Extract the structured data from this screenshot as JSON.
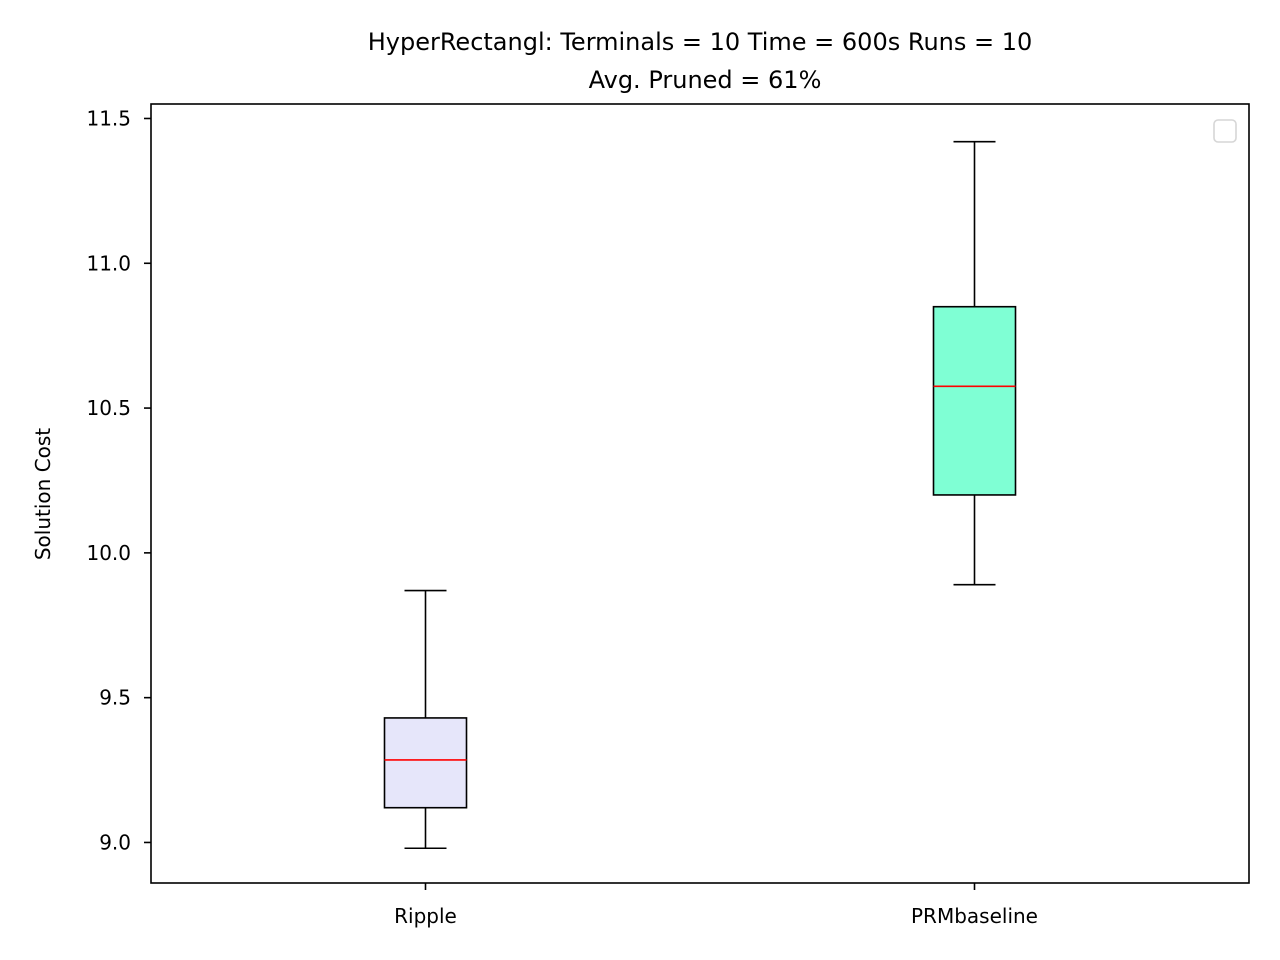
{
  "chart_data": {
    "type": "box",
    "title_line1": "HyperRectangl:  Terminals = 10  Time = 600s  Runs = 10",
    "title_line2": "Avg. Pruned = 61%",
    "xlabel": "",
    "ylabel": "Solution Cost",
    "ylim": [
      8.86,
      11.55
    ],
    "yticks": [
      9.0,
      9.5,
      10.0,
      10.5,
      11.0,
      11.5
    ],
    "ytick_labels": [
      "9.0",
      "9.5",
      "10.0",
      "10.5",
      "11.0",
      "11.5"
    ],
    "categories": [
      "Ripple",
      "PRMbaseline"
    ],
    "boxes": [
      {
        "category": "Ripple",
        "whisker_low": 8.98,
        "q1": 9.12,
        "median": 9.285,
        "q3": 9.43,
        "whisker_high": 9.87,
        "fill": "#e6e6fa"
      },
      {
        "category": "PRMbaseline",
        "whisker_low": 9.89,
        "q1": 10.2,
        "median": 10.575,
        "q3": 10.85,
        "whisker_high": 11.42,
        "fill": "#7fffd4"
      }
    ],
    "median_color": "#ff0000",
    "grid": false,
    "legend": {
      "location": "top-right",
      "entries": []
    }
  }
}
